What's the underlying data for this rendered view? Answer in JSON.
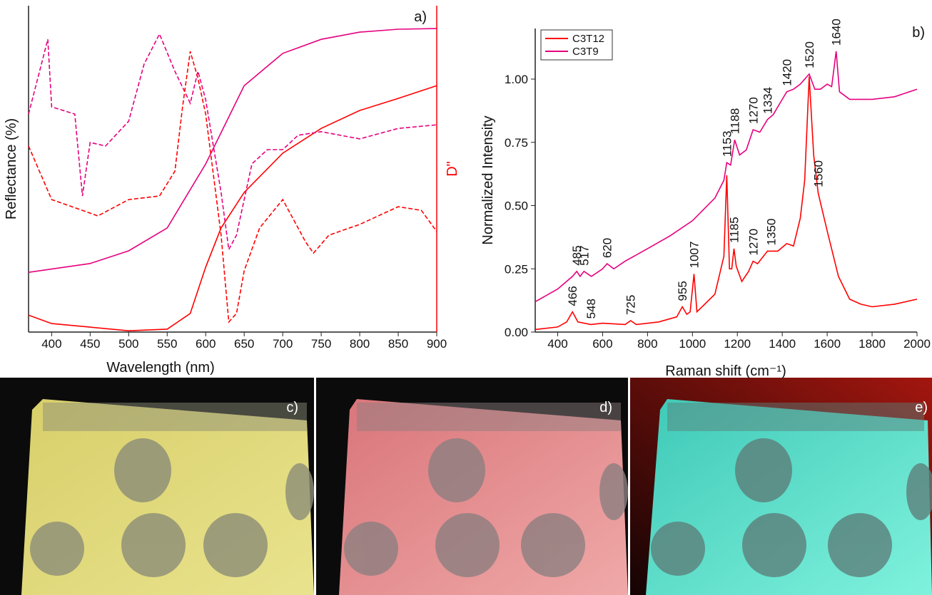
{
  "chart_data": [
    {
      "type": "line",
      "panel_label": "a)",
      "x_label": "Wavelength (nm)",
      "y_label": "Reflectance (%)",
      "y2_label": "D\"",
      "y2_color": "#ff0000",
      "xlim": [
        370,
        900
      ],
      "xticks": [
        400,
        450,
        500,
        550,
        600,
        650,
        700,
        750,
        800,
        850,
        900
      ],
      "ylim": [
        0,
        100
      ],
      "y2lim": [
        0,
        100
      ],
      "series": [
        {
          "color": "#ff0000",
          "x": [
            370,
            400,
            450,
            500,
            550,
            580,
            600,
            620,
            650,
            700,
            750,
            800,
            850,
            900
          ],
          "values": [
            5.2,
            2.6,
            1.5,
            0.4,
            0.9,
            5.7,
            19.9,
            31.9,
            42.8,
            54.8,
            62.4,
            67.9,
            71.6,
            75.5
          ]
        },
        {
          "color": "#e6007e",
          "x": [
            370,
            450,
            500,
            550,
            600,
            650,
            700,
            750,
            800,
            850,
            900
          ],
          "values": [
            18.3,
            21,
            24.9,
            31.9,
            51.5,
            75.5,
            85.4,
            89.7,
            91.9,
            92.8,
            93
          ]
        },
        {
          "color": "#e6007e",
          "dashed": true,
          "axis": "y2",
          "x": [
            370,
            395,
            400,
            430,
            440,
            450,
            470,
            500,
            520,
            540,
            560,
            580,
            590,
            600,
            620,
            630,
            640,
            660,
            680,
            700,
            720,
            750,
            800,
            850,
            900
          ],
          "values": [
            66.8,
            89.7,
            69.0,
            66.8,
            41.7,
            58.1,
            57.0,
            64.6,
            82.1,
            91.3,
            79.9,
            70.1,
            79.9,
            71.2,
            42.8,
            25.3,
            29.7,
            51.5,
            55.9,
            55.9,
            60.3,
            61.4,
            59.2,
            62.4,
            63.5
          ]
        },
        {
          "color": "#ff0000",
          "dashed": true,
          "axis": "y2",
          "x": [
            370,
            400,
            440,
            460,
            500,
            540,
            560,
            570,
            580,
            590,
            600,
            620,
            630,
            640,
            650,
            670,
            700,
            730,
            740,
            760,
            800,
            850,
            880,
            900
          ],
          "values": [
            57.0,
            40.6,
            37.3,
            35.6,
            40.6,
            41.7,
            49.3,
            69.0,
            86.0,
            77.7,
            66.8,
            29.7,
            3.1,
            5.7,
            18.8,
            31.9,
            40.6,
            27.5,
            24.2,
            29.7,
            33.0,
            38.4,
            37.3,
            30.8
          ]
        }
      ]
    },
    {
      "type": "line",
      "panel_label": "b)",
      "x_label": "Raman shift (cm⁻¹)",
      "y_label": "Normalized Intensity",
      "legend": "top-left",
      "xlim": [
        300,
        2000
      ],
      "xticks": [
        400,
        600,
        800,
        1000,
        1200,
        1400,
        1600,
        1800,
        2000
      ],
      "ylim": [
        0,
        1.2
      ],
      "yticks": [
        {
          "value": 0,
          "label": "0.00"
        },
        {
          "value": 0.25,
          "label": "0.25"
        },
        {
          "value": 0.5,
          "label": "0.50"
        },
        {
          "value": 0.75,
          "label": "0.75"
        },
        {
          "value": 1,
          "label": "1.00"
        }
      ],
      "series": [
        {
          "name": "C3T12",
          "color": "#ff0000",
          "x": [
            300,
            400,
            440,
            466,
            490,
            548,
            600,
            700,
            725,
            750,
            850,
            930,
            955,
            975,
            990,
            1007,
            1020,
            1100,
            1140,
            1153,
            1165,
            1175,
            1185,
            1195,
            1220,
            1250,
            1270,
            1290,
            1334,
            1350,
            1380,
            1420,
            1450,
            1480,
            1500,
            1520,
            1540,
            1560,
            1600,
            1650,
            1700,
            1750,
            1800,
            1900,
            2000
          ],
          "values": [
            0.01,
            0.02,
            0.04,
            0.08,
            0.04,
            0.03,
            0.035,
            0.03,
            0.045,
            0.03,
            0.04,
            0.06,
            0.1,
            0.07,
            0.08,
            0.23,
            0.08,
            0.15,
            0.3,
            0.62,
            0.25,
            0.25,
            0.33,
            0.26,
            0.2,
            0.24,
            0.28,
            0.27,
            0.32,
            0.32,
            0.32,
            0.35,
            0.34,
            0.45,
            0.6,
            1.01,
            0.7,
            0.55,
            0.4,
            0.22,
            0.13,
            0.11,
            0.1,
            0.11,
            0.13
          ],
          "peaks": [
            466,
            548,
            725,
            955,
            1007,
            1185,
            1270,
            1350,
            1560
          ]
        },
        {
          "name": "C3T9",
          "color": "#e6007e",
          "x": [
            300,
            400,
            466,
            485,
            500,
            517,
            550,
            600,
            620,
            650,
            700,
            800,
            900,
            1000,
            1100,
            1140,
            1153,
            1170,
            1188,
            1210,
            1240,
            1270,
            1300,
            1334,
            1360,
            1400,
            1420,
            1450,
            1480,
            1520,
            1545,
            1570,
            1600,
            1620,
            1640,
            1655,
            1700,
            1800,
            1900,
            2000
          ],
          "values": [
            0.12,
            0.17,
            0.22,
            0.24,
            0.22,
            0.24,
            0.22,
            0.25,
            0.27,
            0.25,
            0.28,
            0.33,
            0.38,
            0.44,
            0.53,
            0.6,
            0.67,
            0.66,
            0.76,
            0.7,
            0.72,
            0.8,
            0.79,
            0.84,
            0.86,
            0.92,
            0.95,
            0.96,
            0.98,
            1.02,
            0.96,
            0.96,
            0.98,
            0.97,
            1.11,
            0.95,
            0.92,
            0.92,
            0.93,
            0.96
          ],
          "peaks": [
            485,
            517,
            620,
            1153,
            1188,
            1270,
            1334,
            1420,
            1520,
            1640
          ]
        }
      ]
    }
  ],
  "photos": [
    {
      "label": "c)"
    },
    {
      "label": "d)"
    },
    {
      "label": "e)"
    }
  ]
}
